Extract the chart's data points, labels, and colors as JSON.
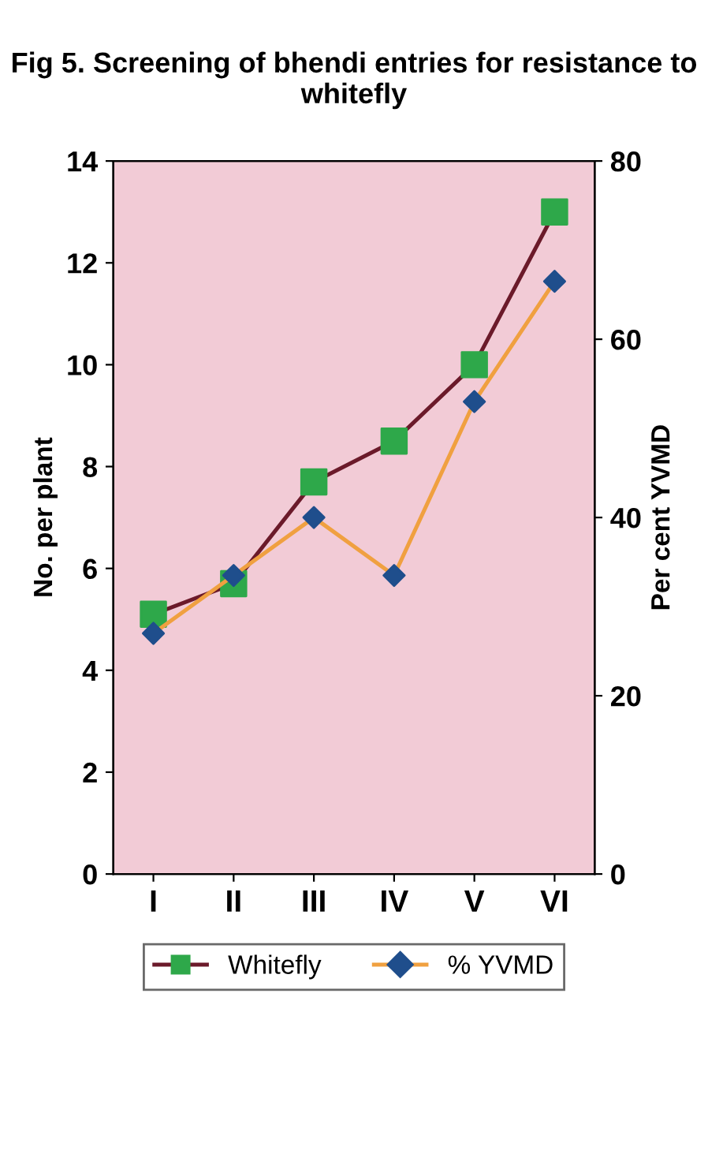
{
  "chart_data": {
    "type": "line",
    "title": "Fig 5. Screening of bhendi entries for resistance to whitefly",
    "ylabel": "No. per plant",
    "y2label": "Per cent YVMD",
    "categories": [
      "I",
      "II",
      "III",
      "IV",
      "V",
      "VI"
    ],
    "series": [
      {
        "name": "Whitefly",
        "color": "#6b1a2a",
        "colors": [
          "#2ea84a",
          "#2ea84a",
          "#2ea84a",
          "#2ea84a",
          "#2ea84a",
          "#2ea84a"
        ],
        "marker": "square",
        "values": [
          5.1,
          5.7,
          7.7,
          8.5,
          10.0,
          13.0
        ]
      },
      {
        "name": "% YVMD",
        "color": "#f0a040",
        "colors": [
          "#1f4e8c",
          "#1f4e8c",
          "#1f4e8c",
          "#1f4e8c",
          "#1f4e8c",
          "#1f4e8c"
        ],
        "marker": "diamond",
        "axis": "y2",
        "values": [
          27,
          33.5,
          40,
          33.5,
          53,
          66.5
        ]
      }
    ],
    "ylim": [
      0,
      14
    ],
    "yticks": [
      0,
      2,
      4,
      6,
      8,
      10,
      12,
      14
    ],
    "y2lim": [
      0,
      80
    ],
    "y2ticks": [
      0,
      20,
      40,
      60,
      80
    ],
    "grid": false,
    "legend": "bottom",
    "line_style": "solid"
  }
}
